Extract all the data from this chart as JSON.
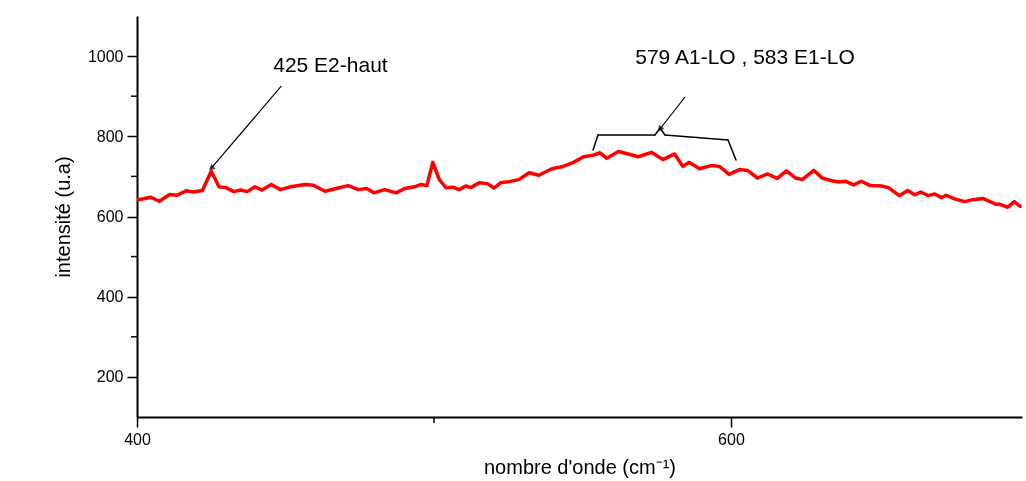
{
  "chart_data": {
    "type": "line",
    "xlabel": "nombre d'onde (cm⁻¹)",
    "ylabel": "intensité (u.a)",
    "xlim": [
      400,
      698
    ],
    "ylim": [
      100,
      1100
    ],
    "xticks": [
      400,
      {
        "value": 500,
        "label": null
      },
      600
    ],
    "yticks": [
      200,
      {
        "value": 300,
        "label": null
      },
      400,
      {
        "value": 500,
        "label": null
      },
      600,
      {
        "value": 700,
        "label": null
      },
      800,
      {
        "value": 900,
        "label": null
      },
      1000
    ],
    "grid": false,
    "marker": "none",
    "line_style": "solid",
    "series": [
      {
        "color": "#ff0000",
        "x": [
          400.3,
          404.7,
          407.5,
          411,
          413.5,
          416.5,
          419,
          422,
          425,
          427.6,
          429.9,
          432.6,
          434.9,
          437.1,
          439.7,
          442.1,
          445.2,
          448.3,
          452.2,
          456.6,
          459.4,
          463.3,
          467.8,
          471.1,
          474.5,
          477.3,
          479.8,
          483.4,
          487.3,
          490.1,
          493.5,
          495.7,
          497.6,
          499.6,
          501.8,
          504,
          506.3,
          508.5,
          510.7,
          512.4,
          515.2,
          518,
          520.2,
          522.4,
          525.3,
          528.6,
          532,
          535.3,
          539.7,
          543.1,
          547,
          550.4,
          553.7,
          555.9,
          558.2,
          562.1,
          565.4,
          568.8,
          573.2,
          577.1,
          581,
          583.8,
          586,
          589.4,
          593.3,
          596.1,
          599.4,
          602.8,
          605.6,
          608.9,
          612.3,
          615.6,
          618.7,
          621.8,
          624,
          627.9,
          630.7,
          633.5,
          636.3,
          638.5,
          641.3,
          643.9,
          646.9,
          650.8,
          653,
          656.7,
          659.5,
          661.9,
          663.9,
          666.4,
          668.6,
          670.9,
          672.5,
          675.3,
          678.7,
          681.4,
          684.8,
          689.3,
          690.4,
          693.2,
          695.4,
          697.4
        ],
        "values": [
          642,
          648,
          638,
          655,
          653,
          664,
          661,
          665,
          713,
          674,
          672,
          662,
          666,
          662,
          674,
          666,
          680,
          667,
          675,
          680,
          678,
          663,
          671,
          677,
          667,
          670,
          659,
          667,
          659,
          670,
          674,
          680,
          677,
          735,
          692,
          672,
          673,
          667,
          676,
          672,
          684,
          682,
          671,
          684,
          687,
          692,
          709,
          703,
          719,
          724,
          735,
          749,
          753,
          759,
          745,
          762,
          756,
          749,
          760,
          742,
          756,
          725,
          735,
          719,
          727,
          725,
          705,
          717,
          715,
          696,
          706,
          695,
          714,
          696,
          692,
          715,
          696,
          690,
          686,
          688,
          679,
          688,
          677,
          676,
          672,
          652,
          665,
          654,
          661,
          652,
          656,
          647,
          653,
          644,
          637,
          642,
          645,
          630,
          631,
          623,
          637,
          625
        ]
      }
    ],
    "annotations": [
      {
        "text": "425 E2-haut",
        "x": 425,
        "y": 713
      },
      "579 A1-LO , 583 E1-LO"
    ]
  }
}
